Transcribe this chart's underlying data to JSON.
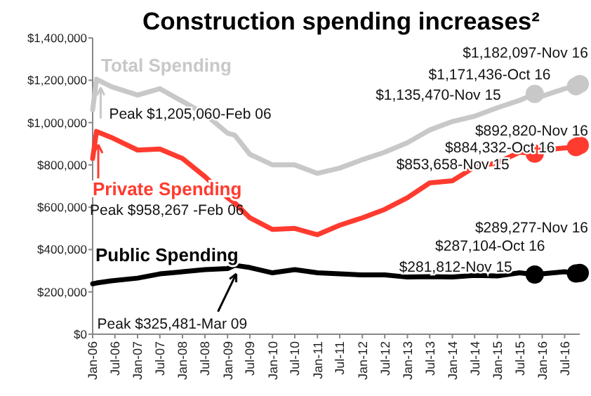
{
  "chart_data": {
    "type": "line",
    "title": "Construction spending increases²",
    "legend": "top left",
    "grid": false,
    "xlim": [
      "2006-01",
      "2016-11"
    ],
    "ylim": [
      0,
      1400000
    ],
    "yticks": [
      {
        "value": 0,
        "label": "$0"
      },
      {
        "value": 200000,
        "label": "$200,000"
      },
      {
        "value": 400000,
        "label": "$400,000"
      },
      {
        "value": 600000,
        "label": "$600,000"
      },
      {
        "value": 800000,
        "label": "$800,000"
      },
      {
        "value": 1000000,
        "label": "$1,000,000"
      },
      {
        "value": 1200000,
        "label": "$1,200,000"
      },
      {
        "value": 1400000,
        "label": "$1,400,000"
      }
    ],
    "xticks": [
      {
        "value": "2006-01",
        "label": "Jan-06"
      },
      {
        "value": "2006-07",
        "label": "Jul-06"
      },
      {
        "value": "2007-01",
        "label": "Jan-07"
      },
      {
        "value": "2007-07",
        "label": "Jul-07"
      },
      {
        "value": "2008-01",
        "label": "Jan-08"
      },
      {
        "value": "2008-07",
        "label": "Jul-08"
      },
      {
        "value": "2009-01",
        "label": "Jan-09"
      },
      {
        "value": "2009-07",
        "label": "Jul-09"
      },
      {
        "value": "2010-01",
        "label": "Jan-10"
      },
      {
        "value": "2010-07",
        "label": "Jul-10"
      },
      {
        "value": "2011-01",
        "label": "Jan-11"
      },
      {
        "value": "2011-07",
        "label": "Jul-11"
      },
      {
        "value": "2012-01",
        "label": "Jan-12"
      },
      {
        "value": "2012-07",
        "label": "Jul-12"
      },
      {
        "value": "2013-01",
        "label": "Jan-13"
      },
      {
        "value": "2013-07",
        "label": "Jul-13"
      },
      {
        "value": "2014-01",
        "label": "Jan-14"
      },
      {
        "value": "2014-07",
        "label": "Jul-14"
      },
      {
        "value": "2015-01",
        "label": "Jan-15"
      },
      {
        "value": "2015-07",
        "label": "Jul-15"
      },
      {
        "value": "2016-01",
        "label": "Jan-16"
      },
      {
        "value": "2016-07",
        "label": "Jul-16"
      }
    ],
    "x": [
      "2006-01",
      "2006-02",
      "2006-06",
      "2007-01",
      "2007-07",
      "2008-01",
      "2008-07",
      "2009-01",
      "2009-03",
      "2009-07",
      "2010-01",
      "2010-07",
      "2011-01",
      "2011-07",
      "2012-01",
      "2012-07",
      "2013-01",
      "2013-07",
      "2014-01",
      "2014-07",
      "2015-01",
      "2015-07",
      "2015-11",
      "2016-01",
      "2016-07",
      "2016-10",
      "2016-11"
    ],
    "series": [
      {
        "name": "Total Spending",
        "color": "#c8c8c8",
        "values": [
          1060000,
          1205060,
          1170000,
          1130000,
          1160000,
          1100000,
          1040000,
          950000,
          940000,
          850000,
          800000,
          800000,
          760000,
          785000,
          825000,
          860000,
          905000,
          965000,
          1005000,
          1030000,
          1070000,
          1105000,
          1135470,
          1125000,
          1160000,
          1171436,
          1182097
        ]
      },
      {
        "name": "Private Spending",
        "color": "#ff3b2f",
        "values": [
          830000,
          958267,
          930000,
          870000,
          875000,
          830000,
          745000,
          645000,
          620000,
          550000,
          495000,
          500000,
          470000,
          515000,
          550000,
          590000,
          645000,
          715000,
          725000,
          790000,
          810000,
          860000,
          853658,
          870000,
          880000,
          884332,
          892820
        ]
      },
      {
        "name": "Public Spending",
        "color": "#000000",
        "values": [
          238000,
          242000,
          252000,
          265000,
          285000,
          295000,
          305000,
          310000,
          325481,
          315000,
          290000,
          305000,
          290000,
          285000,
          280000,
          280000,
          270000,
          272000,
          270000,
          278000,
          275000,
          290000,
          281812,
          285000,
          295000,
          287104,
          289277
        ]
      },
      {
        "type": "scatter",
        "marker": "circle",
        "color": "#c8c8c8",
        "x": [
          "2015-11",
          "2016-10",
          "2016-11"
        ],
        "values": [
          1135470,
          1171436,
          1182097
        ]
      },
      {
        "type": "scatter",
        "marker": "circle",
        "color": "#ff3b2f",
        "x": [
          "2015-11",
          "2016-10",
          "2016-11"
        ],
        "values": [
          853658,
          884332,
          892820
        ]
      },
      {
        "type": "scatter",
        "marker": "circle",
        "color": "#000000",
        "x": [
          "2015-11",
          "2016-10",
          "2016-11"
        ],
        "values": [
          281812,
          287104,
          289277
        ]
      }
    ],
    "annotations": [
      {
        "text": "Peak $1,205,060-Feb 06",
        "x": "2006-02",
        "y": 1205060
      },
      "Peak $958,267 -Feb 06",
      {
        "text": "Peak $325,481-Mar 09",
        "x": "2009-03",
        "y": 325481
      },
      {
        "text": "$1,182,097-Nov 16",
        "x": "2016-11",
        "y": 1182097
      },
      {
        "text": "$1,171,436-Oct 16",
        "x": "2016-10",
        "y": 1171436
      },
      {
        "text": "$1,135,470-Nov 15",
        "x": "2015-11",
        "y": 1135470
      },
      {
        "text": "$892,820-Nov 16",
        "x": "2016-11",
        "y": 892820
      },
      {
        "text": "$884,332-Oct 16",
        "x": "2016-10",
        "y": 884332
      },
      {
        "text": "$853,658-Nov 15",
        "x": "2015-11",
        "y": 853658
      },
      {
        "text": "$289,277-Nov 16",
        "x": "2016-11",
        "y": 289277
      },
      {
        "text": "$287,104-Oct 16",
        "x": "2016-10",
        "y": 287104
      },
      {
        "text": "$281,812-Nov 15",
        "x": "2015-11",
        "y": 281812
      }
    ]
  }
}
